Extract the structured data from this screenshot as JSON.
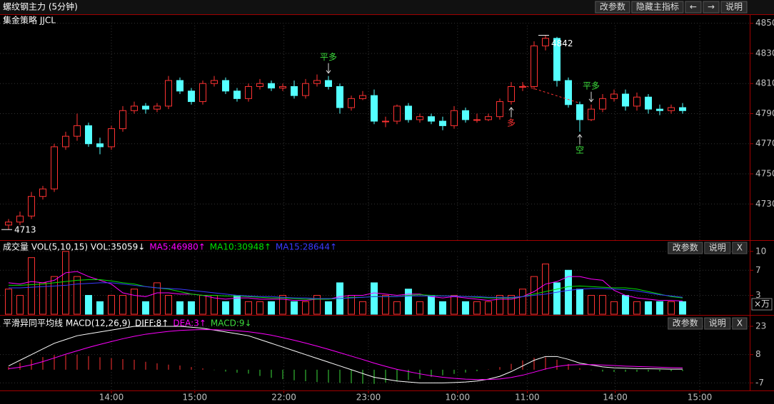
{
  "chart_data": [
    {
      "type": "candlestick",
      "title": "螺纹钢主力 (5分钟)",
      "subtitle": "集金策略 JJCL",
      "buttons": [
        "改参数",
        "隐藏主指标",
        "←",
        "→",
        "说明"
      ],
      "up_color": "#ff3232",
      "down_color": "#54ffff",
      "ylim": [
        4706,
        4856
      ],
      "yticks": [
        4730,
        4750,
        4770,
        4790,
        4810,
        4830,
        4850
      ],
      "grid": true,
      "open": [
        4716,
        4718,
        4722,
        4735,
        4740,
        4768,
        4775,
        4782,
        4770,
        4768,
        4780,
        4792,
        4795,
        4793,
        4795,
        4812,
        4805,
        4798,
        4810,
        4812,
        4805,
        4800,
        4808,
        4810,
        4807,
        4808,
        4802,
        4810,
        4812,
        4808,
        4794,
        4800,
        4802,
        4785,
        4785,
        4795,
        4786,
        4788,
        4785,
        4782,
        4792,
        4786,
        4786,
        4788,
        4798,
        4808,
        4808,
        4835,
        4840,
        4812,
        4796,
        4786,
        4793,
        4800,
        4803,
        4795,
        4801,
        4793,
        4792,
        4794
      ],
      "high": [
        4720,
        4725,
        4738,
        4742,
        4770,
        4778,
        4790,
        4784,
        4774,
        4782,
        4795,
        4798,
        4797,
        4797,
        4815,
        4814,
        4807,
        4812,
        4815,
        4814,
        4807,
        4810,
        4813,
        4812,
        4810,
        4812,
        4813,
        4816,
        4815,
        4810,
        4802,
        4805,
        4806,
        4788,
        4796,
        4797,
        4790,
        4790,
        4788,
        4795,
        4794,
        4790,
        4790,
        4800,
        4811,
        4811,
        4838,
        4842,
        4841,
        4814,
        4798,
        4796,
        4803,
        4806,
        4806,
        4804,
        4803,
        4796,
        4796,
        4797
      ],
      "low": [
        4713,
        4716,
        4720,
        4733,
        4738,
        4766,
        4772,
        4768,
        4763,
        4766,
        4778,
        4790,
        4790,
        4791,
        4793,
        4803,
        4796,
        4796,
        4808,
        4803,
        4798,
        4798,
        4806,
        4805,
        4805,
        4800,
        4800,
        4808,
        4806,
        4790,
        4792,
        4799,
        4783,
        4781,
        4783,
        4784,
        4784,
        4783,
        4779,
        4780,
        4784,
        4784,
        4785,
        4786,
        4796,
        4805,
        4806,
        4832,
        4808,
        4794,
        4778,
        4785,
        4791,
        4798,
        4792,
        4792,
        4790,
        4789,
        4790,
        4790
      ],
      "close": [
        4718,
        4722,
        4735,
        4740,
        4768,
        4775,
        4782,
        4770,
        4768,
        4780,
        4792,
        4795,
        4793,
        4795,
        4812,
        4805,
        4798,
        4810,
        4812,
        4805,
        4800,
        4808,
        4810,
        4807,
        4808,
        4802,
        4810,
        4812,
        4808,
        4794,
        4800,
        4802,
        4785,
        4785,
        4795,
        4786,
        4788,
        4785,
        4782,
        4792,
        4786,
        4786,
        4788,
        4798,
        4808,
        4808,
        4835,
        4840,
        4812,
        4796,
        4786,
        4793,
        4800,
        4803,
        4795,
        4801,
        4793,
        4792,
        4794,
        4792
      ],
      "extremes": [
        {
          "at": 0,
          "value": 4713,
          "side": "low"
        },
        {
          "at": 47,
          "value": 4842,
          "side": "high"
        }
      ],
      "annotations": [
        {
          "text": "平多",
          "at": 28,
          "side": "above",
          "color": "#3cdc3c"
        },
        {
          "text": "多",
          "at": 44,
          "side": "below",
          "color": "#ff3232"
        },
        {
          "text": "平多",
          "at": 51,
          "side": "above",
          "color": "#3cdc3c"
        },
        {
          "text": "空",
          "at": 50,
          "side": "below",
          "color": "#3cdc3c"
        }
      ],
      "trend_line": {
        "color": "#ff3232",
        "from": {
          "at": 45,
          "value": 4809
        },
        "to": {
          "at": 50,
          "value": 4797
        }
      }
    },
    {
      "type": "bar",
      "title": "成交量 VOL(5,10,15) VOL:35059↓",
      "unit": "×万",
      "buttons": [
        "改参数",
        "说明",
        "X"
      ],
      "ylim": [
        0,
        11
      ],
      "yticks": [
        3,
        7,
        10
      ],
      "values": [
        4,
        3,
        9,
        5,
        6,
        10,
        6,
        3,
        2,
        3,
        3,
        4,
        2,
        5,
        3,
        2,
        2,
        3,
        3,
        2,
        3,
        2,
        2,
        2,
        3,
        2,
        2,
        3,
        2,
        5,
        3,
        2,
        5,
        3,
        2,
        4,
        2,
        3,
        2,
        3,
        2,
        2,
        2,
        3,
        3,
        4,
        6,
        8,
        5,
        7,
        4,
        3,
        3,
        2,
        3,
        2,
        2,
        2,
        2,
        2
      ],
      "series": [
        {
          "name": "MA5:46980↑",
          "color": "#ff00ff",
          "values": [
            5,
            4.8,
            5.2,
            5,
            5.4,
            6.6,
            6.8,
            6,
            5.4,
            4.8,
            3.4,
            3,
            2.8,
            3.4,
            3.4,
            3.2,
            3.2,
            3,
            2.6,
            2.4,
            2.6,
            2.6,
            2.4,
            2.4,
            2.4,
            2.2,
            2.2,
            2.4,
            2.4,
            2.8,
            3,
            3,
            3.4,
            3.2,
            3,
            3.2,
            3.2,
            2.8,
            2.6,
            2.8,
            2.6,
            2.4,
            2.2,
            2.4,
            2.4,
            2.8,
            3.6,
            4.8,
            5.2,
            6,
            6,
            5.6,
            5.4,
            3.8,
            3,
            2.6,
            2.4,
            2.2,
            2.2,
            2.1
          ]
        },
        {
          "name": "MA10:30948↑",
          "color": "#00e000",
          "values": [
            4.6,
            4.6,
            4.7,
            4.8,
            5,
            5.2,
            5.4,
            5.5,
            5.5,
            5.3,
            5,
            4.8,
            4.4,
            4.2,
            4,
            3.6,
            3.2,
            3,
            3,
            2.9,
            2.9,
            2.8,
            2.7,
            2.6,
            2.6,
            2.5,
            2.4,
            2.4,
            2.4,
            2.5,
            2.7,
            2.7,
            2.8,
            2.8,
            2.8,
            3,
            3.1,
            3,
            2.9,
            2.9,
            2.8,
            2.7,
            2.6,
            2.6,
            2.6,
            2.8,
            3.2,
            3.6,
            4,
            4.4,
            4.5,
            4.4,
            4.3,
            4.2,
            4.2,
            4,
            3.6,
            3.2,
            2.8,
            2.6
          ]
        },
        {
          "name": "MA15:28644↑",
          "color": "#3a3aff",
          "values": [
            4.2,
            4.2,
            4.3,
            4.4,
            4.5,
            4.6,
            4.8,
            4.9,
            5,
            5,
            4.8,
            4.6,
            4.4,
            4.2,
            4.1,
            4,
            3.8,
            3.6,
            3.4,
            3.2,
            3,
            2.9,
            2.8,
            2.8,
            2.7,
            2.6,
            2.6,
            2.5,
            2.5,
            2.5,
            2.6,
            2.7,
            2.8,
            2.8,
            2.8,
            2.9,
            2.9,
            2.9,
            2.9,
            2.9,
            2.8,
            2.8,
            2.7,
            2.7,
            2.7,
            2.8,
            3,
            3.2,
            3.5,
            3.8,
            4,
            4.1,
            4.1,
            4,
            3.9,
            3.7,
            3.4,
            3.1,
            2.9,
            2.7
          ]
        }
      ]
    },
    {
      "type": "macd",
      "title": "平滑异同平均线 MACD(12,26,9)",
      "buttons": [
        "改参数",
        "说明",
        "X"
      ],
      "ylim": [
        -11,
        26
      ],
      "yticks": [
        -7,
        8,
        23
      ],
      "pos_color": "#ff3232",
      "xticks": [
        {
          "value": 9,
          "label": "14:00"
        },
        {
          "value": 16.3,
          "label": "15:00"
        },
        {
          "value": 24.1,
          "label": "22:00"
        },
        {
          "value": 31.5,
          "label": "23:00"
        },
        {
          "value": 39.3,
          "label": "10:00"
        },
        {
          "value": 45.4,
          "label": "11:00"
        },
        {
          "value": 53.1,
          "label": "14:00"
        },
        {
          "value": 60.5,
          "label": "15:00"
        }
      ],
      "series": [
        {
          "name": "DIFF:8↑",
          "color": "#ffffff",
          "values": [
            2,
            5,
            8,
            11,
            14,
            16,
            18,
            19,
            20,
            21,
            22,
            23,
            23,
            23,
            23,
            23,
            22.5,
            22,
            21,
            20,
            19,
            18,
            16,
            14,
            12,
            10,
            8,
            6,
            4,
            2,
            0,
            -2,
            -4,
            -5,
            -6,
            -6.5,
            -7,
            -7,
            -7,
            -6.8,
            -6.5,
            -6,
            -5,
            -3.5,
            -1,
            2,
            5,
            7,
            7,
            5.5,
            3.5,
            2.5,
            1.5,
            1,
            0.8,
            0.6,
            0.5,
            0.4,
            0.3,
            0.3
          ]
        },
        {
          "name": "DEA:3↑",
          "color": "#ff00ff",
          "values": [
            0.5,
            1.3,
            2.6,
            4.3,
            6.2,
            8.2,
            10,
            11.8,
            13.4,
            14.9,
            16.4,
            17.7,
            18.8,
            19.6,
            20.3,
            20.8,
            21.1,
            21.3,
            21.2,
            21,
            20.6,
            20.1,
            19.3,
            18.3,
            17,
            15.6,
            14.1,
            12.5,
            10.8,
            9,
            7.2,
            5.4,
            3.5,
            1.8,
            0.2,
            -1,
            -2.2,
            -3.2,
            -4,
            -4.6,
            -5,
            -5.2,
            -5.2,
            -4.9,
            -4.1,
            -2.9,
            -1.3,
            0.4,
            1.7,
            2.5,
            2.7,
            2.7,
            2.5,
            2.2,
            1.9,
            1.7,
            1.5,
            1.3,
            1.1,
            1
          ]
        },
        {
          "name": "MACD:9↓",
          "color": "#3cdc3c",
          "kind": "bar",
          "values": [
            1.5,
            3.7,
            5.4,
            6.7,
            7.8,
            7.8,
            8,
            7.2,
            6.6,
            6.1,
            5.6,
            5.3,
            4.2,
            3.4,
            2.7,
            2.2,
            1.4,
            0.7,
            -0.2,
            -1,
            -1.6,
            -2.1,
            -3.3,
            -4.3,
            -5,
            -5.6,
            -6.1,
            -6.5,
            -6.8,
            -7,
            -7.2,
            -7.4,
            -7.5,
            -6.8,
            -6.2,
            -5.5,
            -4.8,
            -3.8,
            -3,
            -2.2,
            -1.5,
            -0.8,
            0.2,
            1.4,
            3.1,
            4.9,
            6.3,
            6.6,
            5.3,
            3,
            0.8,
            -0.2,
            -1,
            -1.2,
            -1.1,
            -1.1,
            -1,
            -0.9,
            -0.8,
            -0.7
          ]
        }
      ]
    }
  ]
}
